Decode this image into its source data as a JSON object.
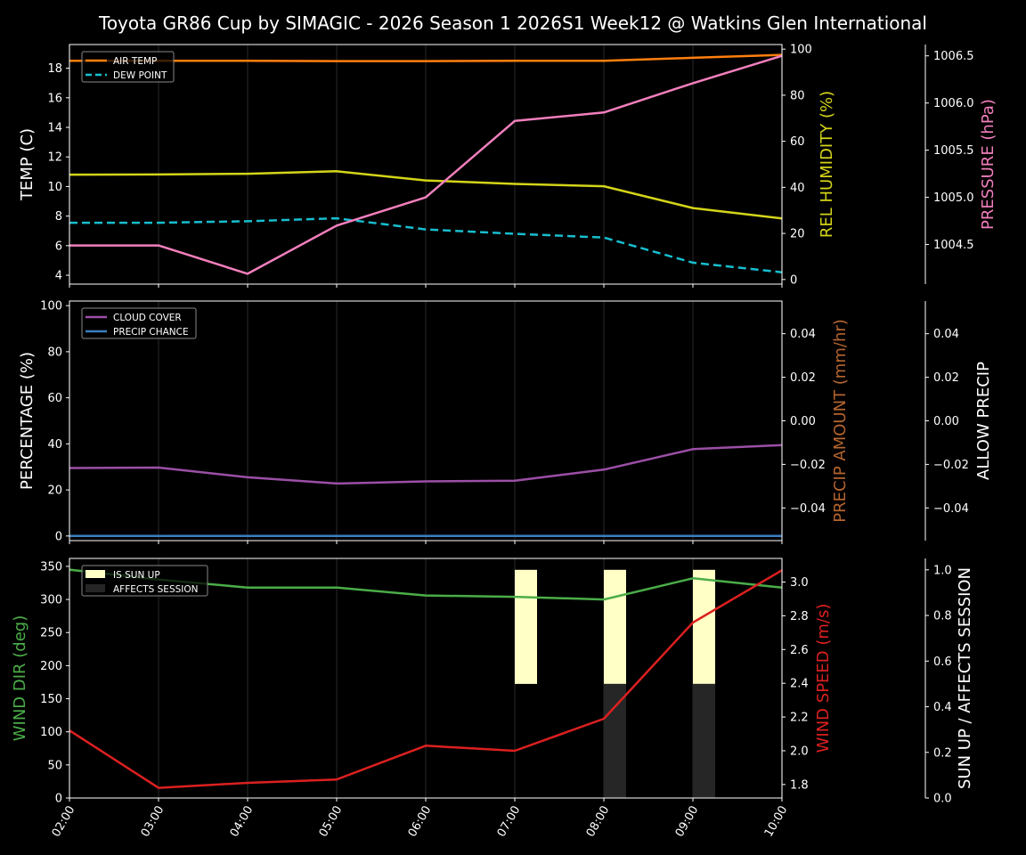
{
  "title": "Toyota GR86 Cup by SIMAGIC - 2026 Season 1 2026S1 Week12 @ Watkins Glen International",
  "colors": {
    "background": "#000000",
    "air_temp": "#ff7f0e",
    "dew_point": "#17becf",
    "humidity": "#d4d41a",
    "pressure": "#f27fbd",
    "cloud_cover": "#9b4fa6",
    "precip_chance": "#3a7fc0",
    "precip_amount_label": "#b5652f",
    "wind_dir": "#4bad48",
    "wind_speed": "#dc2020",
    "sun_up": "#ffffc6",
    "affects_session": "#262626"
  },
  "chart_data": [
    {
      "type": "line",
      "name": "temperature-panel",
      "x": [
        "02:00",
        "03:00",
        "04:00",
        "05:00",
        "06:00",
        "07:00",
        "08:00",
        "09:00",
        "10:00"
      ],
      "ylabel": "TEMP (C)",
      "ylim": [
        3.4,
        19.6
      ],
      "yticks": [
        4,
        6,
        8,
        10,
        12,
        14,
        16,
        18
      ],
      "legend": [
        "AIR TEMP",
        "DEW POINT"
      ],
      "legend_position": "upper left",
      "series": [
        {
          "name": "AIR TEMP",
          "axis": "left",
          "values": [
            18.5,
            18.5,
            18.5,
            18.48,
            18.48,
            18.5,
            18.5,
            18.7,
            18.9
          ]
        },
        {
          "name": "DEW POINT",
          "axis": "left",
          "style": "dashed",
          "values": [
            7.55,
            7.55,
            7.65,
            7.85,
            7.1,
            6.8,
            6.55,
            4.85,
            4.2
          ]
        },
        {
          "name": "REL HUMIDITY",
          "axis": "right1",
          "values": [
            45.5,
            45.6,
            45.9,
            47.0,
            43.0,
            41.5,
            40.5,
            31.0,
            26.5
          ]
        },
        {
          "name": "PRESSURE",
          "axis": "right2",
          "values": [
            1004.49,
            1004.49,
            1004.19,
            1004.7,
            1005.0,
            1005.81,
            1005.9,
            1006.21,
            1006.5
          ]
        }
      ],
      "right_axes": [
        {
          "label": "REL HUMIDITY (%)",
          "ylim": [
            -2,
            102
          ],
          "yticks": [
            0,
            20,
            40,
            60,
            80,
            100
          ]
        },
        {
          "label": "PRESSURE (hPa)",
          "ylim": [
            1004.08,
            1006.62
          ],
          "yticks": [
            "1004.5",
            "1005.0",
            "1005.5",
            "1006.0",
            "1006.5"
          ]
        }
      ]
    },
    {
      "type": "line",
      "name": "precipitation-panel",
      "x": [
        "02:00",
        "03:00",
        "04:00",
        "05:00",
        "06:00",
        "07:00",
        "08:00",
        "09:00",
        "10:00"
      ],
      "ylabel": "PERCENTAGE (%)",
      "ylim": [
        -2,
        102
      ],
      "yticks": [
        0,
        20,
        40,
        60,
        80,
        100
      ],
      "legend": [
        "CLOUD COVER",
        "PRECIP CHANCE"
      ],
      "legend_position": "upper left",
      "series": [
        {
          "name": "CLOUD COVER",
          "axis": "left",
          "values": [
            29.5,
            29.7,
            25.5,
            22.8,
            23.7,
            24.0,
            28.8,
            37.7,
            39.5
          ]
        },
        {
          "name": "PRECIP CHANCE",
          "axis": "left",
          "values": [
            0,
            0,
            0,
            0,
            0,
            0,
            0,
            0,
            0
          ]
        },
        {
          "name": "PRECIP AMOUNT",
          "axis": "right1",
          "values": [
            0,
            0,
            0,
            0,
            0,
            0,
            0,
            0,
            0
          ]
        },
        {
          "name": "ALLOW PRECIP",
          "axis": "right2",
          "values": [
            0,
            0,
            0,
            0,
            0,
            0,
            0,
            0,
            0
          ]
        }
      ],
      "right_axes": [
        {
          "label": "PRECIP AMOUNT (mm/hr)",
          "ylim": [
            -0.055,
            0.055
          ],
          "yticks": [
            "0.04",
            "0.02",
            "0.00",
            "−0.02",
            "−0.04"
          ]
        },
        {
          "label": "ALLOW PRECIP",
          "ylim": [
            -0.055,
            0.055
          ],
          "yticks": [
            "0.04",
            "0.02",
            "0.00",
            "−0.02",
            "−0.04"
          ]
        }
      ]
    },
    {
      "type": "line",
      "name": "wind-panel",
      "x": [
        "02:00",
        "03:00",
        "04:00",
        "05:00",
        "06:00",
        "07:00",
        "08:00",
        "09:00",
        "10:00"
      ],
      "ylabel": "WIND DIR (deg)",
      "ylim": [
        0,
        362
      ],
      "yticks": [
        0,
        50,
        100,
        150,
        200,
        250,
        300,
        350
      ],
      "legend": [
        "IS SUN UP",
        "AFFECTS SESSION"
      ],
      "legend_position": "upper left",
      "series": [
        {
          "name": "WIND DIR",
          "axis": "left",
          "values": [
            345,
            330,
            318,
            318,
            306,
            304,
            300,
            332,
            318
          ]
        },
        {
          "name": "WIND SPEED",
          "axis": "right1",
          "values": [
            2.12,
            1.78,
            1.81,
            1.83,
            2.03,
            2.0,
            2.19,
            2.76,
            3.07
          ]
        },
        {
          "name": "IS SUN UP",
          "axis": "right2",
          "type": "bar",
          "values": [
            0,
            0,
            0,
            0,
            0,
            1,
            1,
            1,
            0
          ]
        },
        {
          "name": "AFFECTS SESSION",
          "axis": "right2",
          "type": "bar",
          "values": [
            0,
            0,
            0,
            0,
            0,
            0,
            1,
            1,
            0
          ]
        }
      ],
      "right_axes": [
        {
          "label": "WIND SPEED (m/s)",
          "ylim": [
            1.72,
            3.14
          ],
          "yticks": [
            "1.8",
            "2.0",
            "2.2",
            "2.4",
            "2.6",
            "2.8",
            "3.0"
          ]
        },
        {
          "label": "SUN UP / AFFECTS SESSION",
          "ylim": [
            0,
            1.05
          ],
          "yticks": [
            "0.0",
            "0.2",
            "0.4",
            "0.6",
            "0.8",
            "1.0"
          ]
        }
      ]
    }
  ]
}
